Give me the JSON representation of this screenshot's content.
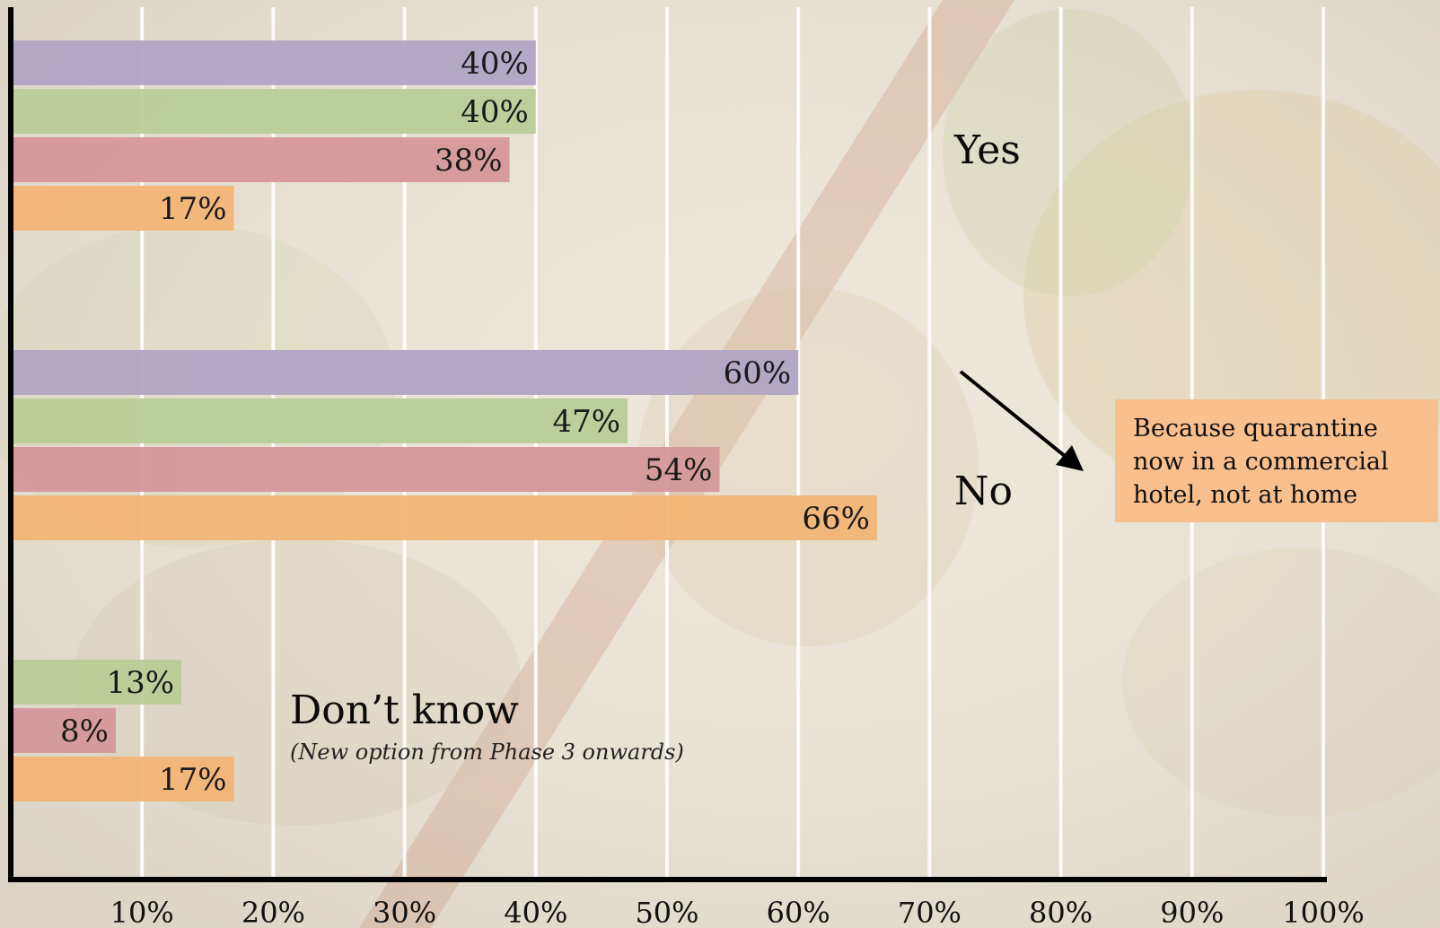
{
  "chart_data": {
    "type": "bar",
    "orientation": "horizontal",
    "xlim": [
      0,
      100
    ],
    "x_ticks": [
      "10%",
      "20%",
      "30%",
      "40%",
      "50%",
      "60%",
      "70%",
      "80%",
      "90%",
      "100%"
    ],
    "grid": true,
    "series_colors": [
      "#b0a4c4",
      "#b9cc98",
      "#d4979a",
      "#f2b476"
    ],
    "groups": [
      {
        "label": "Yes",
        "note": "",
        "bars": [
          {
            "value": 40,
            "label": "40%",
            "series": 0
          },
          {
            "value": 40,
            "label": "40%",
            "series": 1
          },
          {
            "value": 38,
            "label": "38%",
            "series": 2
          },
          {
            "value": 17,
            "label": "17%",
            "series": 3
          }
        ]
      },
      {
        "label": "No",
        "note": "",
        "bars": [
          {
            "value": 60,
            "label": "60%",
            "series": 0
          },
          {
            "value": 47,
            "label": "47%",
            "series": 1
          },
          {
            "value": 54,
            "label": "54%",
            "series": 2
          },
          {
            "value": 66,
            "label": "66%",
            "series": 3
          }
        ]
      },
      {
        "label": "Don’t know",
        "note": "(New option from Phase 3 onwards)",
        "bars": [
          {
            "value": 13,
            "label": "13%",
            "series": 1
          },
          {
            "value": 8,
            "label": "8%",
            "series": 2
          },
          {
            "value": 17,
            "label": "17%",
            "series": 3
          }
        ]
      }
    ]
  },
  "callout": {
    "text": "Because quarantine now in a commercial hotel, not at home",
    "background": "#f9bf8d"
  }
}
